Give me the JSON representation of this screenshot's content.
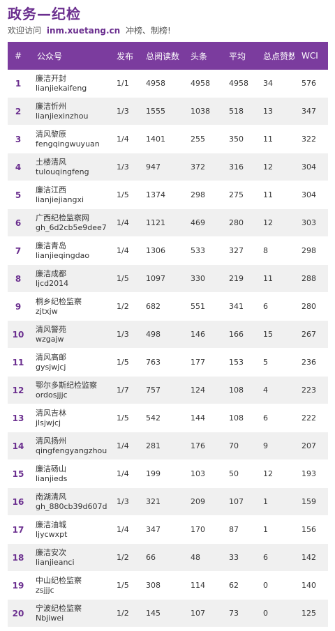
{
  "header": {
    "title": "政务—纪检",
    "subtitle_prefix": "欢迎访问",
    "subtitle_url": "inm.xuetang.cn",
    "subtitle_suffix": "冲榜、制榜!"
  },
  "table": {
    "columns": [
      "#",
      "公众号",
      "发布",
      "总阅读数",
      "头条",
      "平均",
      "总点赞数",
      "WCI"
    ],
    "rows": [
      {
        "rank": "1",
        "name": "廉洁开封",
        "id": "lianjiekaifeng",
        "pub": "1/1",
        "reads": "4958",
        "headline": "4958",
        "avg": "4958",
        "likes": "34",
        "wci": "576"
      },
      {
        "rank": "2",
        "name": "廉洁忻州",
        "id": "lianjiexinzhou",
        "pub": "1/3",
        "reads": "1555",
        "headline": "1038",
        "avg": "518",
        "likes": "13",
        "wci": "347"
      },
      {
        "rank": "3",
        "name": "清风黎原",
        "id": "fengqingwuyuan",
        "pub": "1/4",
        "reads": "1401",
        "headline": "255",
        "avg": "350",
        "likes": "11",
        "wci": "322"
      },
      {
        "rank": "4",
        "name": "土楼清风",
        "id": "tulouqingfeng",
        "pub": "1/3",
        "reads": "947",
        "headline": "372",
        "avg": "316",
        "likes": "12",
        "wci": "304"
      },
      {
        "rank": "5",
        "name": "廉洁江西",
        "id": "lianjiejiangxi",
        "pub": "1/5",
        "reads": "1374",
        "headline": "298",
        "avg": "275",
        "likes": "11",
        "wci": "304"
      },
      {
        "rank": "6",
        "name": "广西纪检监察网",
        "id": "gh_6d2cb5e9dee7",
        "pub": "1/4",
        "reads": "1121",
        "headline": "469",
        "avg": "280",
        "likes": "12",
        "wci": "303"
      },
      {
        "rank": "7",
        "name": "廉洁青岛",
        "id": "lianjieqingdao",
        "pub": "1/4",
        "reads": "1306",
        "headline": "533",
        "avg": "327",
        "likes": "8",
        "wci": "298"
      },
      {
        "rank": "8",
        "name": "廉洁成都",
        "id": "ljcd2014",
        "pub": "1/5",
        "reads": "1097",
        "headline": "330",
        "avg": "219",
        "likes": "11",
        "wci": "288"
      },
      {
        "rank": "9",
        "name": "桐乡纪检监察",
        "id": "zjtxjw",
        "pub": "1/2",
        "reads": "682",
        "headline": "551",
        "avg": "341",
        "likes": "6",
        "wci": "280"
      },
      {
        "rank": "10",
        "name": "清风警苑",
        "id": "wzgajw",
        "pub": "1/3",
        "reads": "498",
        "headline": "146",
        "avg": "166",
        "likes": "15",
        "wci": "267"
      },
      {
        "rank": "11",
        "name": "清风高邮",
        "id": "gysjwjcj",
        "pub": "1/5",
        "reads": "763",
        "headline": "177",
        "avg": "153",
        "likes": "5",
        "wci": "236"
      },
      {
        "rank": "12",
        "name": "鄂尔多斯纪检监察",
        "id": "ordosjjjc",
        "pub": "1/7",
        "reads": "757",
        "headline": "124",
        "avg": "108",
        "likes": "4",
        "wci": "223"
      },
      {
        "rank": "13",
        "name": "清风吉林",
        "id": "jlsjwjcj",
        "pub": "1/5",
        "reads": "542",
        "headline": "144",
        "avg": "108",
        "likes": "6",
        "wci": "222"
      },
      {
        "rank": "14",
        "name": "清风扬州",
        "id": "qingfengyangzhou",
        "pub": "1/4",
        "reads": "281",
        "headline": "176",
        "avg": "70",
        "likes": "9",
        "wci": "207"
      },
      {
        "rank": "15",
        "name": "廉洁砀山",
        "id": "lianjieds",
        "pub": "1/4",
        "reads": "199",
        "headline": "103",
        "avg": "50",
        "likes": "12",
        "wci": "193"
      },
      {
        "rank": "16",
        "name": "南湖清风",
        "id": "gh_880cb39d607d",
        "pub": "1/3",
        "reads": "321",
        "headline": "209",
        "avg": "107",
        "likes": "1",
        "wci": "159"
      },
      {
        "rank": "17",
        "name": "廉洁油城",
        "id": "ljycwxpt",
        "pub": "1/4",
        "reads": "347",
        "headline": "170",
        "avg": "87",
        "likes": "1",
        "wci": "156"
      },
      {
        "rank": "18",
        "name": "廉洁安次",
        "id": "lianjieanci",
        "pub": "1/2",
        "reads": "66",
        "headline": "48",
        "avg": "33",
        "likes": "6",
        "wci": "142"
      },
      {
        "rank": "19",
        "name": "中山纪检监察",
        "id": "zsjjjc",
        "pub": "1/5",
        "reads": "308",
        "headline": "114",
        "avg": "62",
        "likes": "0",
        "wci": "140"
      },
      {
        "rank": "20",
        "name": "宁波纪检监察",
        "id": "Nbjiwei",
        "pub": "1/2",
        "reads": "145",
        "headline": "107",
        "avg": "73",
        "likes": "0",
        "wci": "125"
      }
    ]
  },
  "colors": {
    "accent": "#6b2f8f",
    "header_bg": "#7b3c9e",
    "row_alt": "#f0f0f0"
  }
}
